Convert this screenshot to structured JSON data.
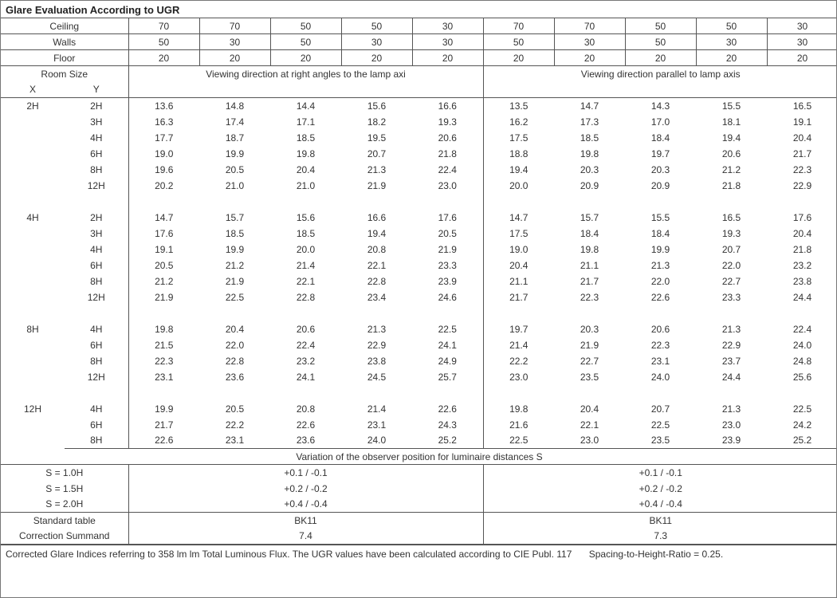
{
  "title": "Glare Evaluation According to UGR",
  "surfaces": {
    "labels": {
      "ceiling": "Ceiling",
      "walls": "Walls",
      "floor": "Floor"
    },
    "ceiling": [
      70,
      70,
      50,
      50,
      30,
      70,
      70,
      50,
      50,
      30
    ],
    "walls": [
      50,
      30,
      50,
      30,
      30,
      50,
      30,
      50,
      30,
      30
    ],
    "floor": [
      20,
      20,
      20,
      20,
      20,
      20,
      20,
      20,
      20,
      20
    ]
  },
  "headers": {
    "roomSize": "Room Size",
    "x": "X",
    "y": "Y",
    "right": "Viewing direction at right angles to the lamp axi",
    "parallel": "Viewing direction parallel to lamp axis"
  },
  "groups": [
    {
      "x": "2H",
      "rows": [
        {
          "y": "2H",
          "v": [
            13.6,
            14.8,
            14.4,
            15.6,
            16.6,
            13.5,
            14.7,
            14.3,
            15.5,
            16.5
          ]
        },
        {
          "y": "3H",
          "v": [
            16.3,
            17.4,
            17.1,
            18.2,
            19.3,
            16.2,
            17.3,
            17.0,
            18.1,
            19.1
          ]
        },
        {
          "y": "4H",
          "v": [
            17.7,
            18.7,
            18.5,
            19.5,
            20.6,
            17.5,
            18.5,
            18.4,
            19.4,
            20.4
          ]
        },
        {
          "y": "6H",
          "v": [
            19.0,
            19.9,
            19.8,
            20.7,
            21.8,
            18.8,
            19.8,
            19.7,
            20.6,
            21.7
          ]
        },
        {
          "y": "8H",
          "v": [
            19.6,
            20.5,
            20.4,
            21.3,
            22.4,
            19.4,
            20.3,
            20.3,
            21.2,
            22.3
          ]
        },
        {
          "y": "12H",
          "v": [
            20.2,
            21.0,
            21.0,
            21.9,
            23.0,
            20.0,
            20.9,
            20.9,
            21.8,
            22.9
          ]
        }
      ]
    },
    {
      "x": "4H",
      "rows": [
        {
          "y": "2H",
          "v": [
            14.7,
            15.7,
            15.6,
            16.6,
            17.6,
            14.7,
            15.7,
            15.5,
            16.5,
            17.6
          ]
        },
        {
          "y": "3H",
          "v": [
            17.6,
            18.5,
            18.5,
            19.4,
            20.5,
            17.5,
            18.4,
            18.4,
            19.3,
            20.4
          ]
        },
        {
          "y": "4H",
          "v": [
            19.1,
            19.9,
            20.0,
            20.8,
            21.9,
            19.0,
            19.8,
            19.9,
            20.7,
            21.8
          ]
        },
        {
          "y": "6H",
          "v": [
            20.5,
            21.2,
            21.4,
            22.1,
            23.3,
            20.4,
            21.1,
            21.3,
            22.0,
            23.2
          ]
        },
        {
          "y": "8H",
          "v": [
            21.2,
            21.9,
            22.1,
            22.8,
            23.9,
            21.1,
            21.7,
            22.0,
            22.7,
            23.8
          ]
        },
        {
          "y": "12H",
          "v": [
            21.9,
            22.5,
            22.8,
            23.4,
            24.6,
            21.7,
            22.3,
            22.6,
            23.3,
            24.4
          ]
        }
      ]
    },
    {
      "x": "8H",
      "rows": [
        {
          "y": "4H",
          "v": [
            19.8,
            20.4,
            20.6,
            21.3,
            22.5,
            19.7,
            20.3,
            20.6,
            21.3,
            22.4
          ]
        },
        {
          "y": "6H",
          "v": [
            21.5,
            22.0,
            22.4,
            22.9,
            24.1,
            21.4,
            21.9,
            22.3,
            22.9,
            24.0
          ]
        },
        {
          "y": "8H",
          "v": [
            22.3,
            22.8,
            23.2,
            23.8,
            24.9,
            22.2,
            22.7,
            23.1,
            23.7,
            24.8
          ]
        },
        {
          "y": "12H",
          "v": [
            23.1,
            23.6,
            24.1,
            24.5,
            25.7,
            23.0,
            23.5,
            24.0,
            24.4,
            25.6
          ]
        }
      ]
    },
    {
      "x": "12H",
      "rows": [
        {
          "y": "4H",
          "v": [
            19.9,
            20.5,
            20.8,
            21.4,
            22.6,
            19.8,
            20.4,
            20.7,
            21.3,
            22.5
          ]
        },
        {
          "y": "6H",
          "v": [
            21.7,
            22.2,
            22.6,
            23.1,
            24.3,
            21.6,
            22.1,
            22.5,
            23.0,
            24.2
          ]
        },
        {
          "y": "8H",
          "v": [
            22.6,
            23.1,
            23.6,
            24.0,
            25.2,
            22.5,
            23.0,
            23.5,
            23.9,
            25.2
          ]
        }
      ]
    }
  ],
  "variation": {
    "label": "Variation of the observer position for luminaire distances S",
    "rows": [
      {
        "s": "S = 1.0H",
        "a": "+0.1 / -0.1",
        "b": "+0.1 / -0.1"
      },
      {
        "s": "S = 1.5H",
        "a": "+0.2 / -0.2",
        "b": "+0.2 / -0.2"
      },
      {
        "s": "S = 2.0H",
        "a": "+0.4 / -0.4",
        "b": "+0.4 / -0.4"
      }
    ]
  },
  "bottom": {
    "stdLabel": "Standard table",
    "corrLabel": "Correction Summand",
    "stdA": "BK11",
    "stdB": "BK11",
    "corrA": "7.4",
    "corrB": "7.3"
  },
  "footnote": {
    "main": "Corrected Glare Indices referring to 358 lm lm Total Luminous Flux. The UGR values have been calculated according to CIE Publ. 117",
    "spacing": "Spacing-to-Height-Ratio = 0.25."
  }
}
